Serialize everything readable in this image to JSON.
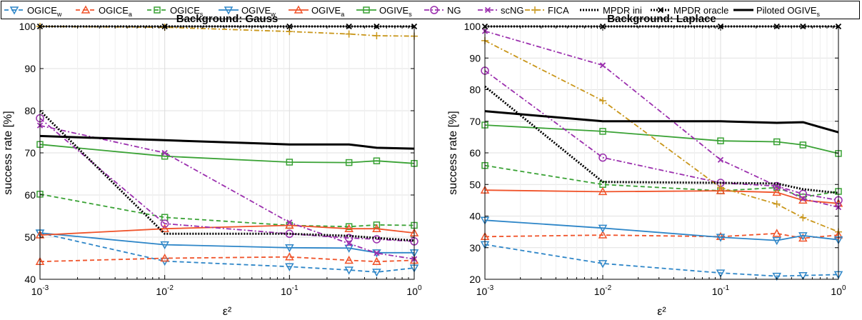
{
  "series_styles": [
    {
      "name_parts": [
        "OGICE",
        "w"
      ],
      "color": "#2E86C8",
      "dash": "6,4",
      "marker": "triangle-down"
    },
    {
      "name_parts": [
        "OGICE",
        "a"
      ],
      "color": "#F0532A",
      "dash": "6,4",
      "marker": "triangle-up"
    },
    {
      "name_parts": [
        "OGICE",
        "s"
      ],
      "color": "#3AA235",
      "dash": "6,4",
      "marker": "square"
    },
    {
      "name_parts": [
        "OGIVE",
        "w"
      ],
      "color": "#2E86C8",
      "dash": "",
      "marker": "triangle-down"
    },
    {
      "name_parts": [
        "OGIVE",
        "a"
      ],
      "color": "#F0532A",
      "dash": "",
      "marker": "triangle-up"
    },
    {
      "name_parts": [
        "OGIVE",
        "s"
      ],
      "color": "#3AA235",
      "dash": "",
      "marker": "square"
    },
    {
      "name_parts": [
        "NG",
        ""
      ],
      "color": "#9B2FAE",
      "dash": "7,3,2,3",
      "marker": "circle"
    },
    {
      "name_parts": [
        "scNG",
        ""
      ],
      "color": "#9B2FAE",
      "dash": "7,3,2,3",
      "marker": "x"
    },
    {
      "name_parts": [
        "FICA",
        ""
      ],
      "color": "#C9961A",
      "dash": "7,3,2,3",
      "marker": "plus"
    },
    {
      "name_parts": [
        "MPDR ini",
        ""
      ],
      "color": "#000000",
      "dash": "2,2",
      "marker": "none"
    },
    {
      "name_parts": [
        "MPDR oracle",
        ""
      ],
      "color": "#000000",
      "dash": "2,2",
      "marker": "x"
    },
    {
      "name_parts": [
        "Piloted OGIVE",
        "s"
      ],
      "color": "#000000",
      "dash": "",
      "marker": "none"
    }
  ],
  "chart_data": [
    {
      "type": "line",
      "title": "Background: Gauss",
      "xlabel": "ε²",
      "ylabel": "success rate [%]",
      "xscale": "log",
      "xlim": [
        0.001,
        1
      ],
      "ylim": [
        40,
        100
      ],
      "x_ticks": [
        {
          "base": "10",
          "exp": "-3"
        },
        {
          "base": "10",
          "exp": "-2"
        },
        {
          "base": "10",
          "exp": "-1"
        },
        {
          "base": "10",
          "exp": "0"
        }
      ],
      "y_ticks": [
        "40",
        "50",
        "60",
        "70",
        "80",
        "90",
        "100"
      ],
      "grid": true,
      "x": [
        0.001,
        0.01,
        0.1,
        0.3,
        0.5,
        1
      ],
      "series": [
        {
          "name": "OGICE_w",
          "values": [
            51,
            44.3,
            43,
            42.2,
            41.7,
            42.7
          ]
        },
        {
          "name": "OGICE_a",
          "values": [
            44.2,
            45,
            45.3,
            44.5,
            44.2,
            44.5
          ]
        },
        {
          "name": "OGICE_s",
          "values": [
            60.2,
            54.7,
            52.8,
            52.5,
            52.9,
            52.8
          ]
        },
        {
          "name": "OGIVE_w",
          "values": [
            51,
            48.2,
            47.5,
            47.4,
            46.3,
            46.3
          ]
        },
        {
          "name": "OGIVE_a",
          "values": [
            50.5,
            52,
            52.8,
            52,
            52,
            51
          ]
        },
        {
          "name": "OGIVE_s",
          "values": [
            72,
            69.2,
            67.8,
            67.7,
            68.1,
            67.5
          ]
        },
        {
          "name": "NG",
          "values": [
            78.2,
            53.2,
            50.8,
            49.8,
            49.5,
            49
          ]
        },
        {
          "name": "scNG",
          "values": [
            76.5,
            70,
            53.5,
            48.5,
            46.2,
            44.8
          ]
        },
        {
          "name": "FICA",
          "values": [
            100,
            99.8,
            98.8,
            98.2,
            97.8,
            97.7
          ]
        },
        {
          "name": "MPDR ini",
          "values": [
            80,
            50.8,
            50.8,
            50.3,
            49.8,
            49.2
          ]
        },
        {
          "name": "MPDR oracle",
          "values": [
            100,
            100,
            100,
            100,
            100,
            100
          ]
        },
        {
          "name": "Piloted OGIVE_s",
          "values": [
            74,
            73,
            72,
            72,
            71.2,
            71
          ]
        }
      ]
    },
    {
      "type": "line",
      "title": "Background: Laplace",
      "xlabel": "ε²",
      "ylabel": "success rate [%]",
      "xscale": "log",
      "xlim": [
        0.001,
        1
      ],
      "ylim": [
        20,
        100
      ],
      "x_ticks": [
        {
          "base": "10",
          "exp": "-3"
        },
        {
          "base": "10",
          "exp": "-2"
        },
        {
          "base": "10",
          "exp": "-1"
        },
        {
          "base": "10",
          "exp": "0"
        }
      ],
      "y_ticks": [
        "20",
        "30",
        "40",
        "50",
        "60",
        "70",
        "80",
        "90",
        "100"
      ],
      "grid": true,
      "x": [
        0.001,
        0.01,
        0.1,
        0.3,
        0.5,
        1
      ],
      "series": [
        {
          "name": "OGICE_w",
          "values": [
            31,
            25,
            22,
            21,
            21.2,
            21.5
          ]
        },
        {
          "name": "OGICE_a",
          "values": [
            33.5,
            34,
            33.5,
            34.5,
            33,
            34
          ]
        },
        {
          "name": "OGICE_s",
          "values": [
            56,
            50,
            48,
            49,
            46,
            47.8
          ]
        },
        {
          "name": "OGIVE_w",
          "values": [
            38.7,
            36.2,
            33.3,
            32.3,
            33.8,
            32.5
          ]
        },
        {
          "name": "OGIVE_a",
          "values": [
            48.2,
            47.7,
            48,
            47.5,
            45,
            44
          ]
        },
        {
          "name": "OGIVE_s",
          "values": [
            68.8,
            66.8,
            63.8,
            63.5,
            62.5,
            59.8
          ]
        },
        {
          "name": "NG",
          "values": [
            86,
            58.5,
            50.5,
            49.5,
            47,
            45
          ]
        },
        {
          "name": "scNG",
          "values": [
            98.5,
            87.7,
            57.8,
            49.5,
            45.5,
            42.8
          ]
        },
        {
          "name": "FICA",
          "values": [
            95.5,
            76.5,
            49,
            43.8,
            39.5,
            35
          ]
        },
        {
          "name": "MPDR ini",
          "values": [
            81,
            50.8,
            50.5,
            50.3,
            48.5,
            47.3
          ]
        },
        {
          "name": "MPDR oracle",
          "values": [
            100,
            100,
            100,
            100,
            100,
            100
          ]
        },
        {
          "name": "Piloted OGIVE_s",
          "values": [
            73.2,
            70,
            70,
            69.5,
            69.7,
            66.5
          ]
        }
      ]
    }
  ]
}
